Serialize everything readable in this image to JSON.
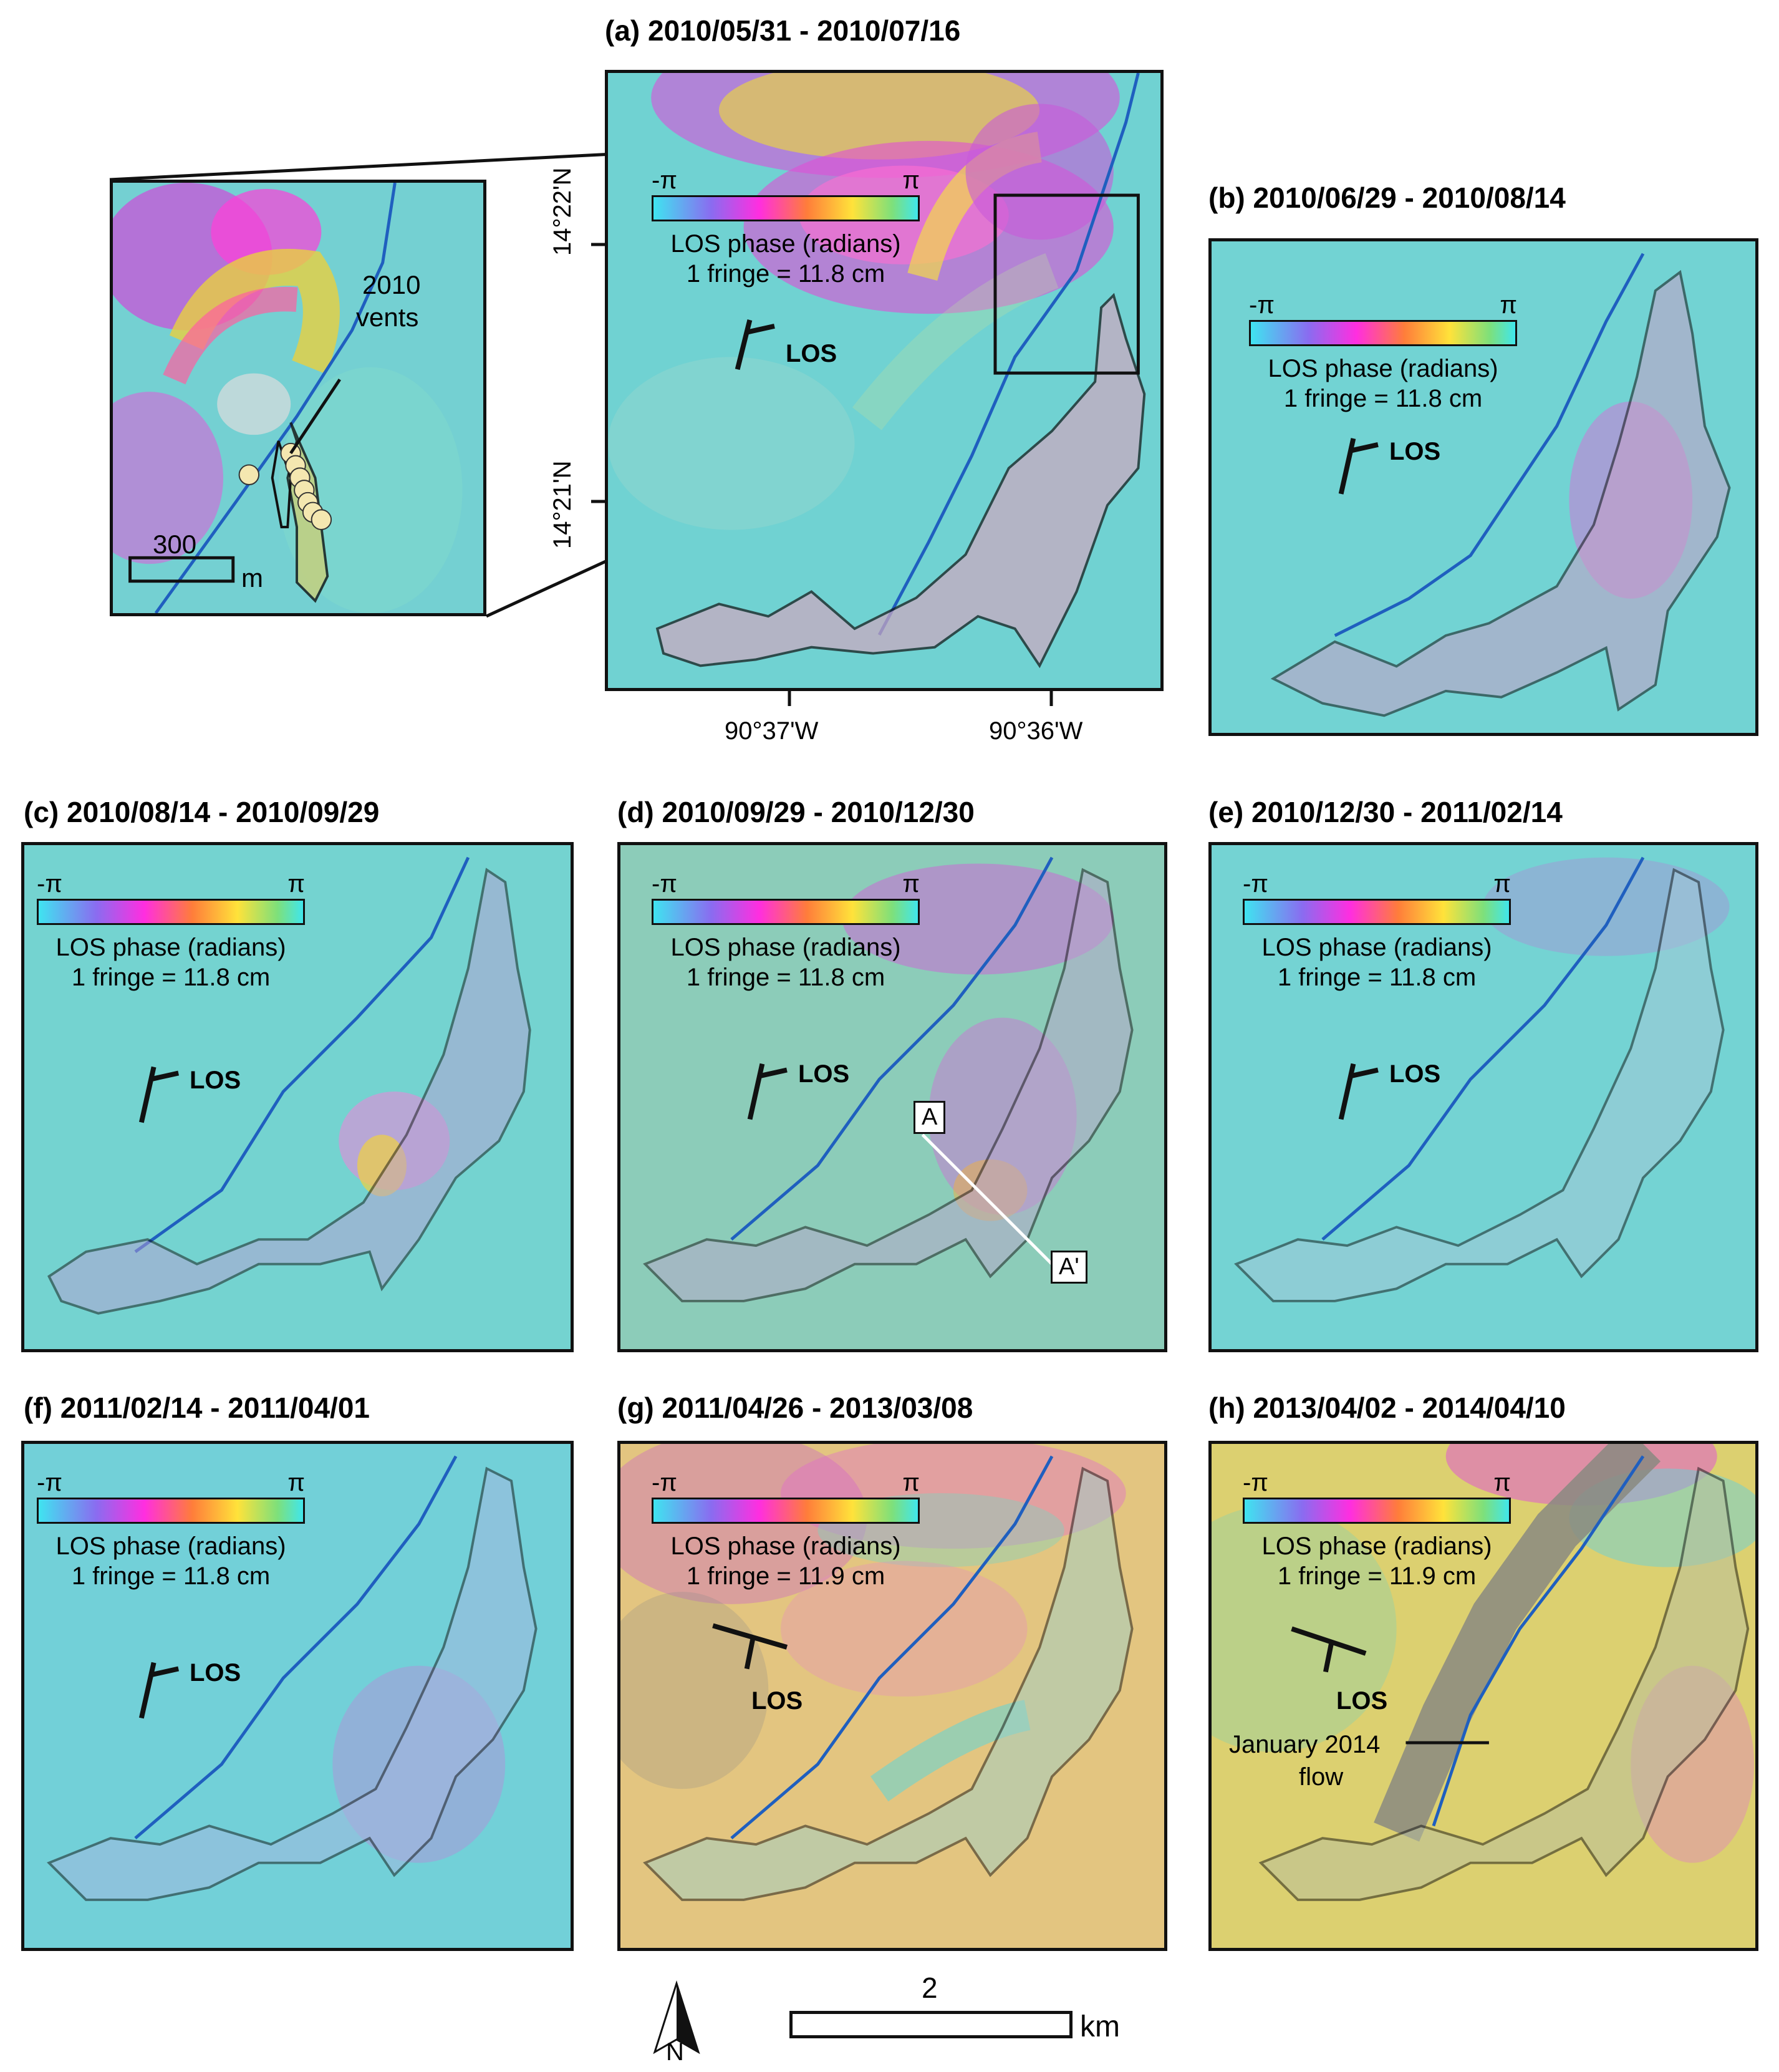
{
  "panels": [
    {
      "id": "a",
      "title": "(a) 2010/05/31 - 2010/07/16",
      "fringe": "1 fringe = 11.8 cm"
    },
    {
      "id": "b",
      "title": "(b) 2010/06/29 - 2010/08/14",
      "fringe": "1 fringe = 11.8 cm"
    },
    {
      "id": "c",
      "title": "(c) 2010/08/14 - 2010/09/29",
      "fringe": "1 fringe = 11.8 cm"
    },
    {
      "id": "d",
      "title": "(d) 2010/09/29 - 2010/12/30",
      "fringe": "1 fringe = 11.8 cm"
    },
    {
      "id": "e",
      "title": "(e) 2010/12/30 - 2011/02/14",
      "fringe": "1 fringe = 11.8 cm"
    },
    {
      "id": "f",
      "title": "(f) 2011/02/14 - 2011/04/01",
      "fringe": "1 fringe = 11.8 cm"
    },
    {
      "id": "g",
      "title": "(g) 2011/04/26 - 2013/03/08",
      "fringe": "1 fringe = 11.9 cm"
    },
    {
      "id": "h",
      "title": "(h) 2013/04/02 - 2014/04/10",
      "fringe": "1 fringe = 11.9 cm"
    }
  ],
  "colorbar": {
    "min_label": "-π",
    "max_label": "π",
    "label": "LOS phase (radians)"
  },
  "los_label": "LOS",
  "coords": {
    "lat1": "14°22'N",
    "lat2": "14°21'N",
    "lon1": "90°37'W",
    "lon2": "90°36'W"
  },
  "inset": {
    "vents_label_1": "2010",
    "vents_label_2": "vents",
    "scale_value": "300",
    "scale_unit": "m"
  },
  "profile": {
    "a": "A",
    "a_prime": "A'"
  },
  "flow_label_1": "January 2014",
  "flow_label_2": "flow",
  "scalebar": {
    "value": "2",
    "unit": "km"
  },
  "north_label": "N",
  "colors": {
    "interferogram_base": "#6ad4d4",
    "fault_line": "#1f5fbf",
    "outline": "#111111",
    "alt_base": "#d9c070"
  }
}
